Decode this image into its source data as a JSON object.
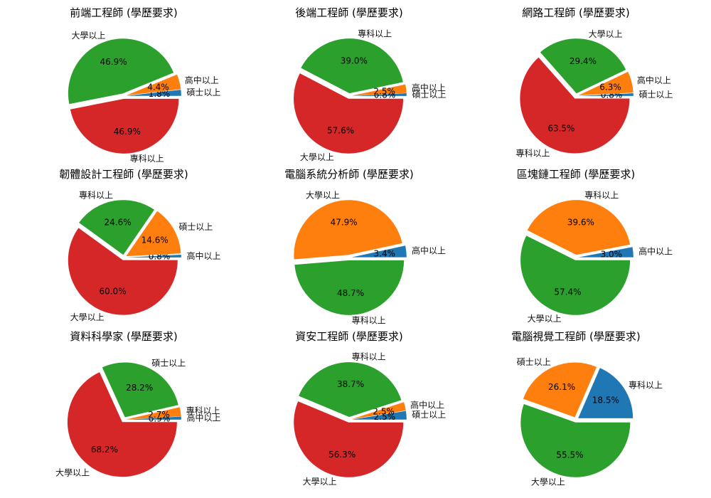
{
  "colors": {
    "blue": "#1f77b4",
    "orange": "#ff7f0e",
    "green": "#2ca02c",
    "red": "#d62728"
  },
  "chart_data": [
    {
      "type": "pie",
      "title": "前端工程師 (學歷要求)",
      "slices": [
        {
          "label": "碩士以上",
          "value": 1.8,
          "pct_label": "1.8%",
          "color": "blue"
        },
        {
          "label": "高中以上",
          "value": 4.4,
          "pct_label": "4.4%",
          "color": "orange"
        },
        {
          "label": "大學以上",
          "value": 46.9,
          "pct_label": "46.9%",
          "color": "green"
        },
        {
          "label": "專科以上",
          "value": 46.9,
          "pct_label": "46.9%",
          "color": "red"
        }
      ]
    },
    {
      "type": "pie",
      "title": "後端工程師 (學歷要求)",
      "slices": [
        {
          "label": "碩士以上",
          "value": 0.8,
          "pct_label": "0.8%",
          "color": "blue"
        },
        {
          "label": "高中以上",
          "value": 2.5,
          "pct_label": "2.5%",
          "color": "orange"
        },
        {
          "label": "專科以上",
          "value": 39.0,
          "pct_label": "39.0%",
          "color": "green"
        },
        {
          "label": "大學以上",
          "value": 57.6,
          "pct_label": "57.6%",
          "color": "red"
        }
      ]
    },
    {
      "type": "pie",
      "title": "網路工程師 (學歷要求)",
      "slices": [
        {
          "label": "碩士以上",
          "value": 0.8,
          "pct_label": "0.8%",
          "color": "blue"
        },
        {
          "label": "高中以上",
          "value": 6.3,
          "pct_label": "6.3%",
          "color": "orange"
        },
        {
          "label": "大學以上",
          "value": 29.4,
          "pct_label": "29.4%",
          "color": "green"
        },
        {
          "label": "專科以上",
          "value": 63.5,
          "pct_label": "63.5%",
          "color": "red"
        }
      ]
    },
    {
      "type": "pie",
      "title": "韌體設計工程師 (學歷要求)",
      "slices": [
        {
          "label": "高中以上",
          "value": 0.8,
          "pct_label": "0.8%",
          "color": "blue"
        },
        {
          "label": "碩士以上",
          "value": 14.6,
          "pct_label": "14.6%",
          "color": "orange"
        },
        {
          "label": "專科以上",
          "value": 24.6,
          "pct_label": "24.6%",
          "color": "green"
        },
        {
          "label": "大學以上",
          "value": 60.0,
          "pct_label": "60.0%",
          "color": "red"
        }
      ]
    },
    {
      "type": "pie",
      "title": "電腦系統分析師 (學歷要求)",
      "slices": [
        {
          "label": "高中以上",
          "value": 3.4,
          "pct_label": "3.4%",
          "color": "blue"
        },
        {
          "label": "大學以上",
          "value": 47.9,
          "pct_label": "47.9%",
          "color": "orange"
        },
        {
          "label": "專科以上",
          "value": 48.7,
          "pct_label": "48.7%",
          "color": "green"
        }
      ]
    },
    {
      "type": "pie",
      "title": "區塊鏈工程師 (學歷要求)",
      "slices": [
        {
          "label": "高中以上",
          "value": 3.0,
          "pct_label": "3.0%",
          "color": "blue"
        },
        {
          "label": "專科以上",
          "value": 39.6,
          "pct_label": "39.6%",
          "color": "orange"
        },
        {
          "label": "大學以上",
          "value": 57.4,
          "pct_label": "57.4%",
          "color": "green"
        }
      ]
    },
    {
      "type": "pie",
      "title": "資料科學家 (學歷要求)",
      "slices": [
        {
          "label": "高中以上",
          "value": 0.9,
          "pct_label": "0.9%",
          "color": "blue"
        },
        {
          "label": "專科以上",
          "value": 2.7,
          "pct_label": "2.7%",
          "color": "orange"
        },
        {
          "label": "碩士以上",
          "value": 28.2,
          "pct_label": "28.2%",
          "color": "green"
        },
        {
          "label": "大學以上",
          "value": 68.2,
          "pct_label": "68.2%",
          "color": "red"
        }
      ]
    },
    {
      "type": "pie",
      "title": "資安工程師 (學歷要求)",
      "slices": [
        {
          "label": "碩士以上",
          "value": 2.5,
          "pct_label": "2.5%",
          "color": "blue"
        },
        {
          "label": "高中以上",
          "value": 2.5,
          "pct_label": "2.5%",
          "color": "orange"
        },
        {
          "label": "專科以上",
          "value": 38.7,
          "pct_label": "38.7%",
          "color": "green"
        },
        {
          "label": "大學以上",
          "value": 56.3,
          "pct_label": "56.3%",
          "color": "red"
        }
      ]
    },
    {
      "type": "pie",
      "title": "電腦視覺工程師 (學歷要求)",
      "slices": [
        {
          "label": "專科以上",
          "value": 18.5,
          "pct_label": "18.5%",
          "color": "blue"
        },
        {
          "label": "碩士以上",
          "value": 26.1,
          "pct_label": "26.1%",
          "color": "orange"
        },
        {
          "label": "大學以上",
          "value": 55.5,
          "pct_label": "55.5%",
          "color": "green"
        }
      ]
    }
  ]
}
